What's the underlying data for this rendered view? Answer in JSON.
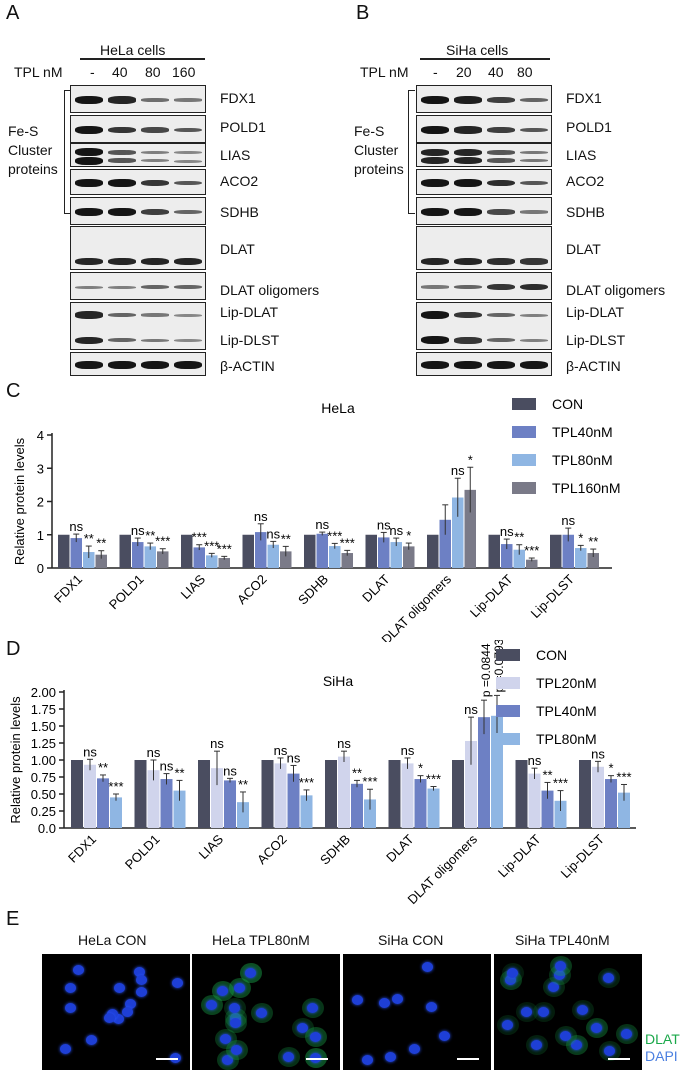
{
  "panel_a": {
    "letter": "A",
    "cell_line": "HeLa cells",
    "tpl_label": "TPL nM",
    "doses": [
      "-",
      "40",
      "80",
      "160"
    ],
    "group_label": "Fe-S\nCluster\nproteins",
    "proteins": [
      "FDX1",
      "POLD1",
      "LIAS",
      "ACO2",
      "SDHB",
      "DLAT",
      "DLAT oligomers",
      "Lip-DLAT",
      "Lip-DLST",
      "β-ACTIN"
    ]
  },
  "panel_b": {
    "letter": "B",
    "cell_line": "SiHa cells",
    "tpl_label": "TPL nM",
    "doses": [
      "-",
      "20",
      "40",
      "80"
    ],
    "group_label": "Fe-S\nCluster\nproteins",
    "proteins": [
      "FDX1",
      "POLD1",
      "LIAS",
      "ACO2",
      "SDHB",
      "DLAT",
      "DLAT oligomers",
      "Lip-DLAT",
      "Lip-DLST",
      "β-ACTIN"
    ]
  },
  "panel_c": {
    "letter": "C"
  },
  "panel_d": {
    "letter": "D"
  },
  "panel_e": {
    "letter": "E",
    "titles": [
      "HeLa CON",
      "HeLa TPL80nM",
      "SiHa CON",
      "SiHa TPL40nM"
    ],
    "legend_dlat": "DLAT",
    "legend_dapi": "DAPI",
    "colors": {
      "dlat": "#1aa84a",
      "dapi": "#4a7fe0"
    }
  },
  "chart_data": [
    {
      "type": "bar",
      "title": "HeLa",
      "ylabel": "Relative protein levels",
      "xlabel": "",
      "ylim": [
        0,
        4
      ],
      "yticks": [
        "0",
        "1",
        "2",
        "3",
        "4"
      ],
      "legend_position": "top-right",
      "categories": [
        "FDX1",
        "POLD1",
        "LIAS",
        "ACO2",
        "SDHB",
        "DLAT",
        "DLAT oligomers",
        "Lip-DLAT",
        "Lip-DLST"
      ],
      "series": [
        {
          "name": "CON",
          "color": "#4a4d60",
          "values": [
            1,
            1,
            1,
            1,
            1,
            1,
            1,
            1,
            1
          ],
          "errors": [
            0,
            0,
            0,
            0,
            0,
            0,
            0,
            0,
            0
          ]
        },
        {
          "name": "TPL40nM",
          "color": "#6d80c4",
          "values": [
            0.9,
            0.78,
            0.62,
            1.08,
            1.03,
            0.92,
            1.45,
            0.72,
            1.0
          ],
          "errors": [
            0.12,
            0.12,
            0.08,
            0.25,
            0.05,
            0.15,
            0.45,
            0.15,
            0.2
          ]
        },
        {
          "name": "TPL80nM",
          "color": "#8fb6e3",
          "values": [
            0.48,
            0.65,
            0.38,
            0.7,
            0.66,
            0.78,
            2.12,
            0.55,
            0.6
          ],
          "errors": [
            0.18,
            0.1,
            0.06,
            0.1,
            0.08,
            0.12,
            0.58,
            0.15,
            0.08
          ]
        },
        {
          "name": "TPL160nM",
          "color": "#7a7a88",
          "values": [
            0.4,
            0.5,
            0.3,
            0.5,
            0.45,
            0.65,
            2.35,
            0.25,
            0.45
          ],
          "errors": [
            0.12,
            0.08,
            0.05,
            0.15,
            0.08,
            0.1,
            0.68,
            0.05,
            0.12
          ]
        }
      ],
      "annotations": [
        [
          "",
          "ns",
          "**",
          "**"
        ],
        [
          "",
          "ns",
          "**",
          "***"
        ],
        [
          "",
          "***",
          "***",
          "***"
        ],
        [
          "",
          "ns",
          "ns",
          "**"
        ],
        [
          "",
          "ns",
          "***",
          "***"
        ],
        [
          "",
          "ns",
          "ns",
          "*"
        ],
        [
          "",
          "",
          "ns",
          "*"
        ],
        [
          "",
          "ns",
          "**",
          "***"
        ],
        [
          "",
          "ns",
          "*",
          "**"
        ]
      ]
    },
    {
      "type": "bar",
      "title": "SiHa",
      "ylabel": "Relative protein levels",
      "xlabel": "",
      "ylim": [
        0,
        2.0
      ],
      "yticks": [
        "0.0",
        "0.25",
        "0.50",
        "0.75",
        "1.00",
        "1.25",
        "1.50",
        "1.75",
        "2.00"
      ],
      "legend_position": "top-right",
      "categories": [
        "FDX1",
        "POLD1",
        "LIAS",
        "ACO2",
        "SDHB",
        "DLAT",
        "DLAT oligomers",
        "Lip-DLAT",
        "Lip-DLST"
      ],
      "series": [
        {
          "name": "CON",
          "color": "#4a4d60",
          "values": [
            1,
            1,
            1,
            1,
            1,
            1,
            1,
            1,
            1
          ],
          "errors": [
            0,
            0,
            0,
            0,
            0,
            0,
            0,
            0,
            0
          ]
        },
        {
          "name": "TPL20nM",
          "color": "#d0d4ec",
          "values": [
            0.93,
            0.85,
            0.88,
            0.95,
            1.05,
            0.95,
            1.28,
            0.8,
            0.9
          ],
          "errors": [
            0.08,
            0.15,
            0.25,
            0.08,
            0.08,
            0.08,
            0.35,
            0.08,
            0.08
          ]
        },
        {
          "name": "TPL40nM",
          "color": "#6d80c4",
          "values": [
            0.73,
            0.72,
            0.7,
            0.8,
            0.65,
            0.72,
            1.63,
            0.55,
            0.72
          ],
          "errors": [
            0.05,
            0.08,
            0.03,
            0.12,
            0.05,
            0.05,
            0.25,
            0.12,
            0.05
          ]
        },
        {
          "name": "TPL80nM",
          "color": "#8fb6e3",
          "values": [
            0.45,
            0.55,
            0.38,
            0.48,
            0.42,
            0.58,
            1.65,
            0.4,
            0.52
          ],
          "errors": [
            0.05,
            0.15,
            0.15,
            0.08,
            0.15,
            0.03,
            0.3,
            0.15,
            0.12
          ]
        }
      ],
      "annotations": [
        [
          "",
          "ns",
          "**",
          "***"
        ],
        [
          "",
          "ns",
          "ns",
          "**"
        ],
        [
          "",
          "ns",
          "ns",
          "**"
        ],
        [
          "",
          "ns",
          "ns",
          "***"
        ],
        [
          "",
          "ns",
          "**",
          "***"
        ],
        [
          "",
          "ns",
          "*",
          "***"
        ],
        [
          "",
          "ns",
          "p =0.0844",
          "p =0.0793"
        ],
        [
          "",
          "ns",
          "**",
          "***"
        ],
        [
          "",
          "ns",
          "*",
          "***"
        ]
      ]
    }
  ]
}
